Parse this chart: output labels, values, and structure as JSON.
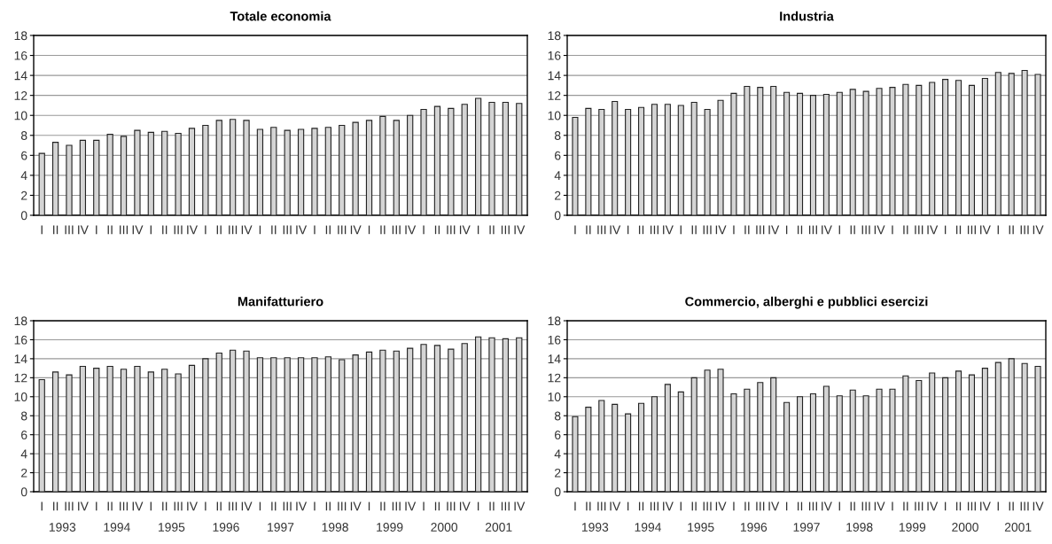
{
  "chart_data": [
    {
      "type": "bar",
      "title": "Totale economia",
      "categories": [
        "I",
        "II",
        "III",
        "IV",
        "I",
        "II",
        "III",
        "IV",
        "I",
        "II",
        "III",
        "IV",
        "I",
        "II",
        "III",
        "IV",
        "I",
        "II",
        "III",
        "IV",
        "I",
        "II",
        "III",
        "IV",
        "I",
        "II",
        "III",
        "IV",
        "I",
        "II",
        "III",
        "IV",
        "I",
        "II",
        "III",
        "IV"
      ],
      "color": "#d4d4d4",
      "ylim": [
        0,
        18
      ],
      "yticks": [
        0,
        2,
        4,
        6,
        8,
        10,
        12,
        14,
        16,
        18
      ],
      "grid": "y",
      "values": [
        6.2,
        7.3,
        7.0,
        7.5,
        7.5,
        8.1,
        7.9,
        8.5,
        8.3,
        8.4,
        8.2,
        8.7,
        9.0,
        9.5,
        9.6,
        9.5,
        8.6,
        8.8,
        8.5,
        8.6,
        8.7,
        8.8,
        9.0,
        9.3,
        9.5,
        9.9,
        9.5,
        10.0,
        10.6,
        10.9,
        10.7,
        11.1,
        11.7,
        11.3,
        11.3,
        11.2
      ]
    },
    {
      "type": "bar",
      "title": "Industria",
      "categories": [
        "I",
        "II",
        "III",
        "IV",
        "I",
        "II",
        "III",
        "IV",
        "I",
        "II",
        "III",
        "IV",
        "I",
        "II",
        "III",
        "IV",
        "I",
        "II",
        "III",
        "IV",
        "I",
        "II",
        "III",
        "IV",
        "I",
        "II",
        "III",
        "IV",
        "I",
        "II",
        "III",
        "IV",
        "I",
        "II",
        "III",
        "IV"
      ],
      "color": "#d4d4d4",
      "ylim": [
        0,
        18
      ],
      "yticks": [
        0,
        2,
        4,
        6,
        8,
        10,
        12,
        14,
        16,
        18
      ],
      "grid": "y",
      "values": [
        9.8,
        10.7,
        10.6,
        11.4,
        10.6,
        10.8,
        11.1,
        11.1,
        11.0,
        11.3,
        10.6,
        11.5,
        12.2,
        12.9,
        12.8,
        12.9,
        12.3,
        12.2,
        12.0,
        12.1,
        12.3,
        12.6,
        12.4,
        12.7,
        12.8,
        13.1,
        13.0,
        13.3,
        13.6,
        13.5,
        13.0,
        13.7,
        14.3,
        14.2,
        14.5,
        14.1
      ]
    },
    {
      "type": "bar",
      "title": "Manifatturiero",
      "categories": [
        "I",
        "II",
        "III",
        "IV",
        "I",
        "II",
        "III",
        "IV",
        "I",
        "II",
        "III",
        "IV",
        "I",
        "II",
        "III",
        "IV",
        "I",
        "II",
        "III",
        "IV",
        "I",
        "II",
        "III",
        "IV",
        "I",
        "II",
        "III",
        "IV",
        "I",
        "II",
        "III",
        "IV",
        "I",
        "II",
        "III",
        "IV"
      ],
      "color": "#d4d4d4",
      "ylim": [
        0,
        18
      ],
      "yticks": [
        0,
        2,
        4,
        6,
        8,
        10,
        12,
        14,
        16,
        18
      ],
      "grid": "y",
      "values": [
        11.8,
        12.6,
        12.3,
        13.2,
        13.0,
        13.2,
        12.9,
        13.2,
        12.6,
        12.9,
        12.4,
        13.3,
        14.0,
        14.6,
        14.9,
        14.8,
        14.1,
        14.1,
        14.1,
        14.1,
        14.1,
        14.2,
        13.9,
        14.4,
        14.7,
        14.9,
        14.8,
        15.1,
        15.5,
        15.4,
        15.0,
        15.6,
        16.3,
        16.2,
        16.1,
        16.2
      ],
      "annotations": [
        "1993",
        "1994",
        "1995",
        "1996",
        "1997",
        "1998",
        "1999",
        "2000",
        "2001"
      ]
    },
    {
      "type": "bar",
      "title": "Commercio, alberghi e pubblici esercizi",
      "categories": [
        "I",
        "II",
        "III",
        "IV",
        "I",
        "II",
        "III",
        "IV",
        "I",
        "II",
        "III",
        "IV",
        "I",
        "II",
        "III",
        "IV",
        "I",
        "II",
        "III",
        "IV",
        "I",
        "II",
        "III",
        "IV",
        "I",
        "II",
        "III",
        "IV",
        "I",
        "II",
        "III",
        "IV",
        "I",
        "II",
        "III",
        "IV"
      ],
      "color": "#d4d4d4",
      "ylim": [
        0,
        18
      ],
      "yticks": [
        0,
        2,
        4,
        6,
        8,
        10,
        12,
        14,
        16,
        18
      ],
      "grid": "y",
      "values": [
        7.9,
        8.9,
        9.6,
        9.2,
        8.2,
        9.3,
        10.0,
        11.3,
        10.5,
        12.0,
        12.8,
        12.9,
        10.3,
        10.8,
        11.5,
        12.0,
        9.4,
        10.0,
        10.3,
        11.1,
        10.1,
        10.7,
        10.1,
        10.8,
        10.8,
        12.2,
        11.7,
        12.5,
        12.0,
        12.7,
        12.3,
        13.0,
        13.6,
        14.0,
        13.5,
        13.2
      ],
      "annotations": [
        "1993",
        "1994",
        "1995",
        "1996",
        "1997",
        "1998",
        "1999",
        "2000",
        "2001"
      ]
    }
  ]
}
